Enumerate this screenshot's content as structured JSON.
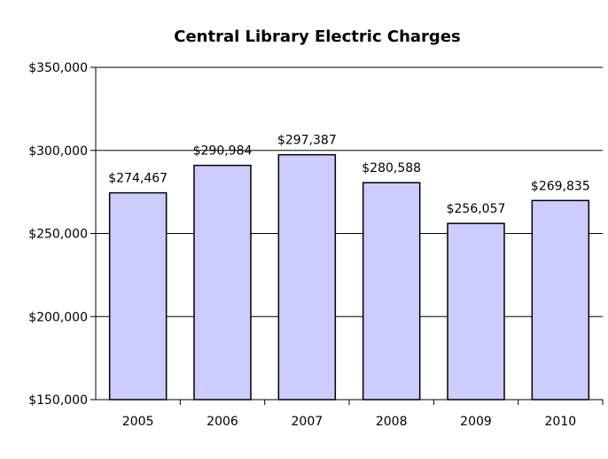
{
  "chart_data": {
    "type": "bar",
    "title": "Central Library Electric Charges",
    "categories": [
      "2005",
      "2006",
      "2007",
      "2008",
      "2009",
      "2010"
    ],
    "values": [
      274467,
      290984,
      297387,
      280588,
      256057,
      269835
    ],
    "data_labels": [
      "$274,467",
      "$290,984",
      "$297,387",
      "$280,588",
      "$256,057",
      "$269,835"
    ],
    "ylim": [
      150000,
      350000
    ],
    "yticks": [
      150000,
      200000,
      250000,
      300000,
      350000
    ],
    "ytick_labels": [
      "$150,000",
      "$200,000",
      "$250,000",
      "$300,000",
      "$350,000"
    ],
    "grid": true,
    "legend": false,
    "colors": {
      "bar_fill": "#ccccff",
      "bar_stroke": "#000000",
      "grid": "#000000"
    }
  }
}
